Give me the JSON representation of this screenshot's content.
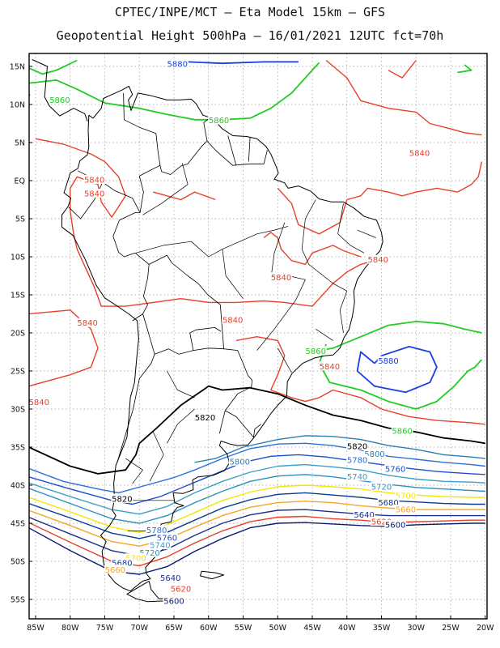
{
  "header": {
    "line1": "CPTEC/INPE/MCT –  Eta Model 15km – GFS",
    "line2": "Geopotential Height 500hPa – 16/01/2021 12UTC fct=70h"
  },
  "axes": {
    "lat_labels": [
      "15N",
      "10N",
      "5N",
      "EQ",
      "5S",
      "10S",
      "15S",
      "20S",
      "25S",
      "30S",
      "35S",
      "40S",
      "45S",
      "50S",
      "55S"
    ],
    "lon_labels": [
      "85W",
      "80W",
      "75W",
      "70W",
      "65W",
      "60W",
      "55W",
      "50W",
      "45W",
      "40W",
      "35W",
      "30W",
      "25W",
      "20W"
    ]
  },
  "colors": {
    "c5600": "#0b1a6e",
    "c5620": "#e8402a",
    "c5640": "#1d2f8c",
    "c5660": "#f5a623",
    "c5680": "#0a3d8f",
    "c5700": "#f5e600",
    "c5720": "#2b8fbf",
    "c5740": "#3aa0c8",
    "c5760": "#1f4fcf",
    "c5780": "#2a70d8",
    "c5800": "#2b7fb0",
    "c5820": "#000000",
    "c5840": "#e8402a",
    "c5860": "#22cc22",
    "c5880": "#1a3ee0",
    "land": "#000000"
  },
  "contour_labels": [
    {
      "text": "5880",
      "lon": -64.5,
      "lat": 15.2,
      "color": "c5880"
    },
    {
      "text": "5860",
      "lon": -81.5,
      "lat": 10.5,
      "color": "c5860"
    },
    {
      "text": "5860",
      "lon": -58.5,
      "lat": 7.8,
      "color": "c5860"
    },
    {
      "text": "5840",
      "lon": -29.5,
      "lat": 3.5,
      "color": "c5840"
    },
    {
      "text": "5840",
      "lon": -76.5,
      "lat": 0.0,
      "color": "c5840"
    },
    {
      "text": "5840",
      "lon": -76.5,
      "lat": -1.8,
      "color": "c5840"
    },
    {
      "text": "5840",
      "lon": -35.5,
      "lat": -10.5,
      "color": "c5840"
    },
    {
      "text": "5840",
      "lon": -49.5,
      "lat": -12.8,
      "color": "c5840"
    },
    {
      "text": "5840",
      "lon": -42.5,
      "lat": -24.5,
      "color": "c5840"
    },
    {
      "text": "5840",
      "lon": -77.5,
      "lat": -18.8,
      "color": "c5840"
    },
    {
      "text": "5840",
      "lon": -56.5,
      "lat": -18.4,
      "color": "c5840"
    },
    {
      "text": "5840",
      "lon": -84.5,
      "lat": -29.2,
      "color": "c5840"
    },
    {
      "text": "5860",
      "lon": -44.5,
      "lat": -22.5,
      "color": "c5860"
    },
    {
      "text": "5880",
      "lon": -34.0,
      "lat": -23.8,
      "color": "c5880"
    },
    {
      "text": "5860",
      "lon": -32.0,
      "lat": -33.0,
      "color": "c5860"
    },
    {
      "text": "5820",
      "lon": -60.5,
      "lat": -31.2,
      "color": "c5820"
    },
    {
      "text": "5820",
      "lon": -38.5,
      "lat": -35.0,
      "color": "c5820"
    },
    {
      "text": "5800",
      "lon": -55.5,
      "lat": -37.0,
      "color": "c5800"
    },
    {
      "text": "5800",
      "lon": -36.0,
      "lat": -36.0,
      "color": "c5800"
    },
    {
      "text": "5780",
      "lon": -38.5,
      "lat": -36.8,
      "color": "c5780"
    },
    {
      "text": "5760",
      "lon": -33.0,
      "lat": -38.0,
      "color": "c5760"
    },
    {
      "text": "5740",
      "lon": -38.5,
      "lat": -39.0,
      "color": "c5740"
    },
    {
      "text": "5720",
      "lon": -35.0,
      "lat": -40.3,
      "color": "c5720"
    },
    {
      "text": "5700",
      "lon": -31.5,
      "lat": -41.5,
      "color": "c5700"
    },
    {
      "text": "5680",
      "lon": -34.0,
      "lat": -42.4,
      "color": "c5680"
    },
    {
      "text": "5660",
      "lon": -31.5,
      "lat": -43.3,
      "color": "c5660"
    },
    {
      "text": "5640",
      "lon": -37.5,
      "lat": -44.0,
      "color": "c5640"
    },
    {
      "text": "5620",
      "lon": -35.0,
      "lat": -44.9,
      "color": "c5620"
    },
    {
      "text": "5600",
      "lon": -33.0,
      "lat": -45.3,
      "color": "c5600"
    },
    {
      "text": "5820",
      "lon": -72.5,
      "lat": -41.9,
      "color": "c5820"
    },
    {
      "text": "5780",
      "lon": -67.5,
      "lat": -46.0,
      "color": "c5780"
    },
    {
      "text": "5760",
      "lon": -66.0,
      "lat": -47.0,
      "color": "c5760"
    },
    {
      "text": "5740",
      "lon": -67.0,
      "lat": -48.0,
      "color": "c5740"
    },
    {
      "text": "5720",
      "lon": -68.5,
      "lat": -49.0,
      "color": "c5720"
    },
    {
      "text": "5700",
      "lon": -70.5,
      "lat": -49.7,
      "color": "c5700"
    },
    {
      "text": "5680",
      "lon": -72.5,
      "lat": -50.3,
      "color": "c5680"
    },
    {
      "text": "5660",
      "lon": -73.5,
      "lat": -51.2,
      "color": "c5660"
    },
    {
      "text": "5640",
      "lon": -65.5,
      "lat": -52.3,
      "color": "c5640"
    },
    {
      "text": "5620",
      "lon": -64.0,
      "lat": -53.7,
      "color": "c5620"
    },
    {
      "text": "5600",
      "lon": -65.0,
      "lat": -55.3,
      "color": "c5600"
    }
  ]
}
